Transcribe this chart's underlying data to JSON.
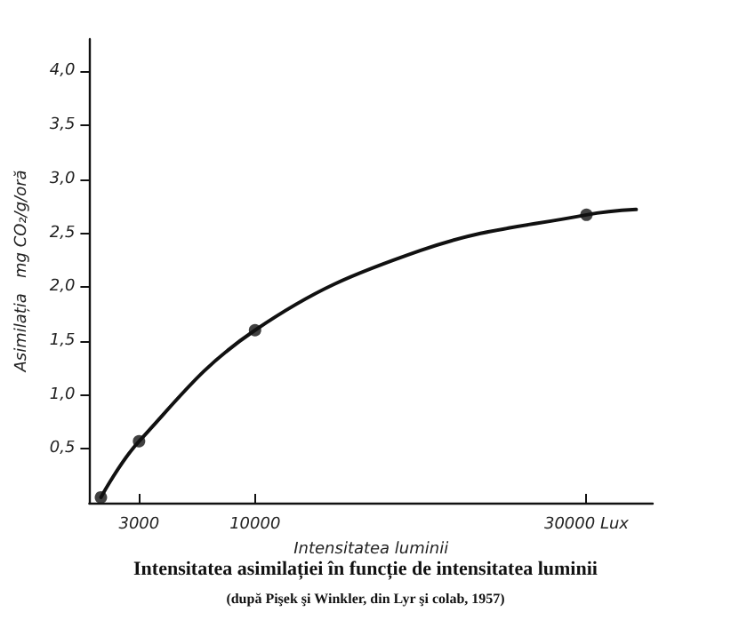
{
  "chart_data": {
    "type": "line",
    "title": "Intensitatea asimilației în funcție de intensitatea luminii",
    "subtitle": "(după Pişek şi Winkler, din Lyr şi colab, 1957)",
    "xlabel": "Intensitatea luminii",
    "ylabel": "Asimilația   mg CO₂/g/oră",
    "series": [
      {
        "color": "#111111",
        "marker": "none",
        "x": [
          700,
          3000,
          10000,
          20000,
          30000,
          33000
        ],
        "values": [
          0.05,
          0.57,
          1.6,
          2.34,
          2.67,
          2.72
        ]
      },
      {
        "type": "scatter",
        "color": "#111111",
        "marker": "circle",
        "x": [
          700,
          3000,
          10000,
          30000
        ],
        "values": [
          0.05,
          0.57,
          1.6,
          2.67
        ]
      }
    ],
    "line_style": "solid",
    "grid": false,
    "xlim": [
      0,
      34000
    ],
    "xticks": [
      3000,
      10000,
      {
        "value": 30000,
        "label": "30000 Lux"
      }
    ],
    "ylim": [
      0,
      4.3
    ],
    "yticks": [
      {
        "value": 0.5,
        "label": "0,5"
      },
      {
        "value": 1,
        "label": "1,0"
      },
      {
        "value": 1.5,
        "label": "1,5"
      },
      {
        "value": 2,
        "label": "2,0"
      },
      {
        "value": 2.5,
        "label": "2,5"
      },
      {
        "value": 3,
        "label": "3,0"
      },
      {
        "value": 3.5,
        "label": "3,5"
      },
      {
        "value": 4,
        "label": "4,0"
      }
    ]
  }
}
